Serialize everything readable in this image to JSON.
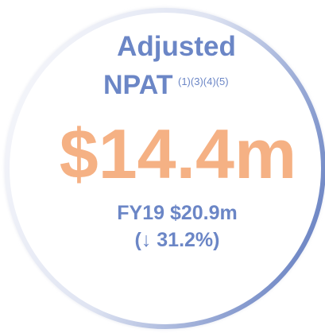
{
  "title": "Adjusted",
  "subtitle": "NPAT",
  "footnotes": "(1)(3)(4)(5)",
  "value": "$14.4m",
  "comparison": "FY19 $20.9m",
  "change": "(↓ 31.2%)"
}
